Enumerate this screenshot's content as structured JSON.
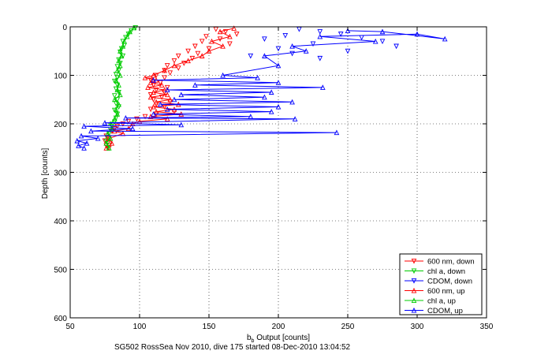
{
  "caption": "SG502 RossSea Nov 2010, dive 175 started 08-Dec-2010 13:04:52",
  "chart_data": {
    "type": "line",
    "xlabel_main": "b",
    "xlabel_sub": "b",
    "xlabel_rest": " Output [counts]",
    "ylabel": "Depth [counts]",
    "xlim": [
      50,
      350
    ],
    "ylim": [
      0,
      600
    ],
    "y_reversed": true,
    "grid": true,
    "legend_position": "bottom-right",
    "xticks": [
      50,
      100,
      150,
      200,
      250,
      300,
      350
    ],
    "yticks": [
      0,
      100,
      200,
      300,
      400,
      500,
      600
    ],
    "series": [
      {
        "name": "600 nm, down",
        "color": "#ff0000",
        "marker": "triangle-down",
        "linestyle": "none",
        "points": [
          [
            155,
            5
          ],
          [
            162,
            10
          ],
          [
            170,
            15
          ],
          [
            148,
            20
          ],
          [
            158,
            25
          ],
          [
            145,
            30
          ],
          [
            165,
            35
          ],
          [
            140,
            40
          ],
          [
            150,
            45
          ],
          [
            135,
            50
          ],
          [
            142,
            55
          ],
          [
            128,
            60
          ],
          [
            138,
            65
          ],
          [
            125,
            70
          ],
          [
            132,
            75
          ],
          [
            120,
            80
          ],
          [
            128,
            85
          ],
          [
            118,
            90
          ],
          [
            122,
            95
          ],
          [
            112,
            100
          ],
          [
            118,
            105
          ],
          [
            108,
            110
          ],
          [
            115,
            115
          ],
          [
            110,
            120
          ],
          [
            120,
            125
          ],
          [
            112,
            130
          ],
          [
            118,
            135
          ],
          [
            108,
            140
          ],
          [
            116,
            145
          ],
          [
            110,
            150
          ],
          [
            122,
            155
          ],
          [
            112,
            160
          ],
          [
            118,
            165
          ],
          [
            108,
            170
          ],
          [
            125,
            175
          ],
          [
            112,
            180
          ],
          [
            104,
            185
          ],
          [
            98,
            190
          ],
          [
            92,
            195
          ],
          [
            88,
            200
          ],
          [
            84,
            205
          ],
          [
            82,
            210
          ],
          [
            80,
            215
          ],
          [
            78,
            220
          ],
          [
            76,
            225
          ],
          [
            78,
            230
          ],
          [
            75,
            235
          ],
          [
            77,
            240
          ],
          [
            76,
            245
          ],
          [
            78,
            250
          ]
        ]
      },
      {
        "name": "chl a, down",
        "color": "#00cc00",
        "marker": "triangle-down",
        "linestyle": "none",
        "points": [
          [
            97,
            2
          ],
          [
            94,
            8
          ],
          [
            92,
            15
          ],
          [
            90,
            22
          ],
          [
            88,
            30
          ],
          [
            89,
            38
          ],
          [
            87,
            45
          ],
          [
            86,
            52
          ],
          [
            88,
            60
          ],
          [
            85,
            68
          ],
          [
            86,
            75
          ],
          [
            84,
            82
          ],
          [
            85,
            90
          ],
          [
            83,
            98
          ],
          [
            84,
            105
          ],
          [
            82,
            112
          ],
          [
            84,
            120
          ],
          [
            83,
            128
          ],
          [
            85,
            135
          ],
          [
            82,
            142
          ],
          [
            84,
            150
          ],
          [
            83,
            158
          ],
          [
            85,
            165
          ],
          [
            82,
            172
          ],
          [
            84,
            180
          ],
          [
            83,
            188
          ],
          [
            82,
            196
          ],
          [
            80,
            205
          ],
          [
            79,
            212
          ],
          [
            78,
            220
          ],
          [
            77,
            228
          ],
          [
            76,
            236
          ],
          [
            78,
            244
          ],
          [
            77,
            250
          ]
        ]
      },
      {
        "name": "CDOM, down",
        "color": "#0000ff",
        "marker": "triangle-down",
        "linestyle": "none",
        "points": [
          [
            215,
            5
          ],
          [
            230,
            10
          ],
          [
            245,
            15
          ],
          [
            205,
            18
          ],
          [
            260,
            22
          ],
          [
            190,
            25
          ],
          [
            275,
            30
          ],
          [
            225,
            35
          ],
          [
            285,
            40
          ],
          [
            200,
            45
          ],
          [
            250,
            50
          ],
          [
            210,
            55
          ],
          [
            180,
            60
          ],
          [
            230,
            65
          ]
        ]
      },
      {
        "name": "600 nm, up",
        "color": "#ff0000",
        "marker": "triangle-up",
        "linestyle": "solid",
        "points": [
          [
            76,
            250
          ],
          [
            80,
            240
          ],
          [
            78,
            230
          ],
          [
            88,
            220
          ],
          [
            82,
            215
          ],
          [
            92,
            210
          ],
          [
            95,
            200
          ],
          [
            100,
            195
          ],
          [
            120,
            190
          ],
          [
            108,
            185
          ],
          [
            130,
            180
          ],
          [
            112,
            175
          ],
          [
            125,
            170
          ],
          [
            110,
            165
          ],
          [
            128,
            160
          ],
          [
            112,
            155
          ],
          [
            122,
            150
          ],
          [
            108,
            145
          ],
          [
            120,
            140
          ],
          [
            110,
            135
          ],
          [
            118,
            130
          ],
          [
            106,
            125
          ],
          [
            116,
            120
          ],
          [
            108,
            115
          ],
          [
            112,
            110
          ],
          [
            104,
            105
          ],
          [
            110,
            100
          ],
          [
            118,
            90
          ],
          [
            125,
            80
          ],
          [
            135,
            70
          ],
          [
            145,
            60
          ],
          [
            150,
            50
          ],
          [
            160,
            40
          ],
          [
            152,
            30
          ],
          [
            165,
            20
          ],
          [
            158,
            10
          ],
          [
            168,
            3
          ]
        ]
      },
      {
        "name": "chl a, up",
        "color": "#00cc00",
        "marker": "triangle-up",
        "linestyle": "solid",
        "points": [
          [
            78,
            250
          ],
          [
            76,
            240
          ],
          [
            79,
            230
          ],
          [
            77,
            220
          ],
          [
            80,
            210
          ],
          [
            79,
            200
          ],
          [
            82,
            190
          ],
          [
            84,
            180
          ],
          [
            83,
            170
          ],
          [
            85,
            160
          ],
          [
            82,
            150
          ],
          [
            86,
            140
          ],
          [
            84,
            130
          ],
          [
            85,
            120
          ],
          [
            83,
            110
          ],
          [
            86,
            100
          ],
          [
            84,
            90
          ],
          [
            86,
            80
          ],
          [
            85,
            70
          ],
          [
            87,
            60
          ],
          [
            86,
            50
          ],
          [
            88,
            40
          ],
          [
            89,
            30
          ],
          [
            91,
            20
          ],
          [
            93,
            10
          ],
          [
            96,
            2
          ]
        ]
      },
      {
        "name": "CDOM, up",
        "color": "#0000ff",
        "marker": "triangle-up",
        "linestyle": "solid",
        "points": [
          [
            60,
            250
          ],
          [
            56,
            245
          ],
          [
            62,
            240
          ],
          [
            55,
            235
          ],
          [
            70,
            230
          ],
          [
            58,
            225
          ],
          [
            242,
            218
          ],
          [
            65,
            215
          ],
          [
            95,
            210
          ],
          [
            60,
            205
          ],
          [
            130,
            202
          ],
          [
            75,
            198
          ],
          [
            212,
            190
          ],
          [
            90,
            188
          ],
          [
            180,
            185
          ],
          [
            110,
            180
          ],
          [
            195,
            175
          ],
          [
            120,
            170
          ],
          [
            200,
            165
          ],
          [
            115,
            160
          ],
          [
            210,
            155
          ],
          [
            125,
            150
          ],
          [
            190,
            145
          ],
          [
            130,
            140
          ],
          [
            195,
            135
          ],
          [
            120,
            130
          ],
          [
            232,
            125
          ],
          [
            140,
            120
          ],
          [
            200,
            115
          ],
          [
            110,
            110
          ],
          [
            185,
            105
          ],
          [
            160,
            100
          ],
          [
            200,
            80
          ],
          [
            190,
            60
          ],
          [
            220,
            50
          ],
          [
            210,
            40
          ],
          [
            270,
            30
          ],
          [
            230,
            20
          ],
          [
            300,
            15
          ],
          [
            320,
            25
          ],
          [
            275,
            10
          ],
          [
            250,
            8
          ]
        ]
      }
    ]
  }
}
